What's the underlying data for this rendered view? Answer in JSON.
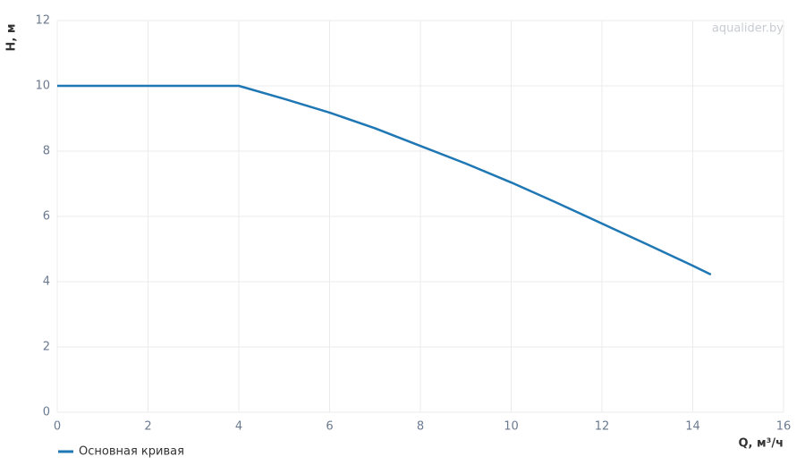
{
  "chart_data": {
    "type": "line",
    "watermark": "aqualider.by",
    "x_label": "Q, м³/ч",
    "y_label": "H, м",
    "x": [
      0,
      2,
      4,
      5,
      6,
      7,
      8,
      9,
      10,
      11,
      12,
      13,
      14,
      14.4
    ],
    "series": [
      {
        "name": "Основная кривая",
        "color": "#1f77b4",
        "values": [
          10,
          10,
          10,
          9.6,
          9.18,
          8.7,
          8.16,
          7.62,
          7.04,
          6.42,
          5.78,
          5.14,
          4.49,
          4.22
        ]
      }
    ],
    "xlim": [
      0,
      16
    ],
    "xticks": [
      0,
      2,
      4,
      6,
      8,
      10,
      12,
      14,
      16
    ],
    "ylim": [
      0,
      12
    ],
    "yticks": [
      0,
      2,
      4,
      6,
      8,
      10,
      12
    ],
    "grid": true,
    "legend": "bottom-left"
  }
}
